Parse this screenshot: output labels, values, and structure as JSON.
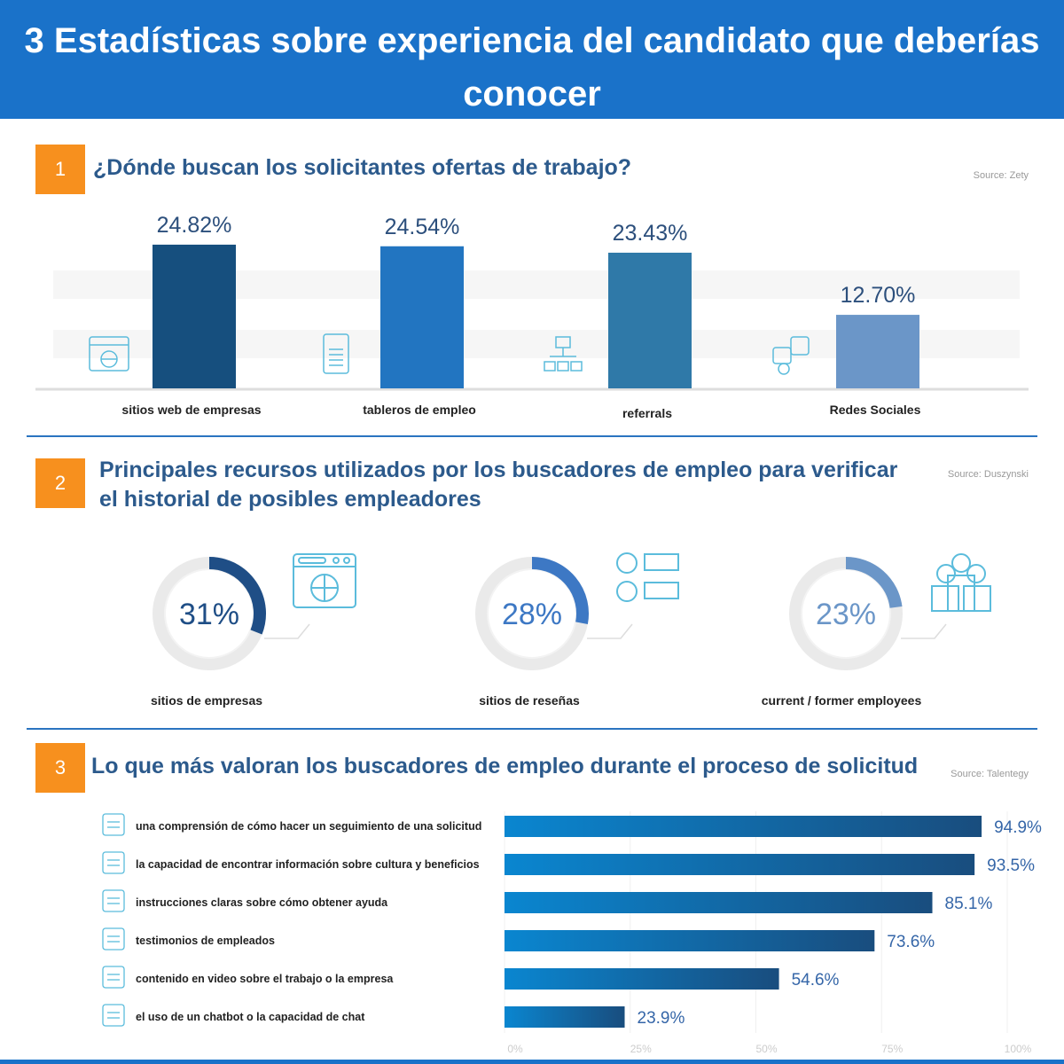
{
  "header": {
    "title": "3 Estadísticas sobre experiencia del candidato que deberías conocer"
  },
  "colors": {
    "header": "#1a72c9",
    "badge": "#f7901e",
    "title": "#2c5a8c",
    "icon": "#5bbcdc"
  },
  "sections": [
    {
      "number": "1",
      "title": "¿Dónde buscan los solicitantes ofertas de trabajo?",
      "source": "Source: Zety"
    },
    {
      "number": "2",
      "title": "Principales recursos utilizados por los buscadores de empleo para verificar el historial de posibles empleadores",
      "source": "Source: Duszynski"
    },
    {
      "number": "3",
      "title": "Lo que más valoran los buscadores de empleo durante el proceso de solicitud",
      "source": "Source: Talentegy"
    }
  ],
  "chart_data": [
    {
      "type": "bar",
      "categories": [
        "sitios web de empresas",
        "tableros de empleo",
        "referrals",
        "Redes Sociales"
      ],
      "values": [
        24.82,
        24.54,
        23.43,
        12.7
      ],
      "data_labels": [
        "24.82%",
        "24.54%",
        "23.43%",
        "12.70%"
      ],
      "colors": [
        "#164f7e",
        "#2275c1",
        "#2f79a8",
        "#6b96c8"
      ],
      "icons": [
        "globe-browser-icon",
        "jobs-board-icon",
        "org-chart-icon",
        "social-media-icon"
      ]
    },
    {
      "type": "pie",
      "subtype": "donut",
      "categories": [
        "sitios de empresas",
        "sitios de reseñas",
        "current / former employees"
      ],
      "values": [
        31,
        28,
        23
      ],
      "data_labels": [
        "31%",
        "28%",
        "23%"
      ],
      "colors": [
        "#1f4e86",
        "#3d78c4",
        "#6b96c8"
      ],
      "icons": [
        "globe-browser-icon",
        "checklist-icon",
        "employees-icon"
      ]
    },
    {
      "type": "bar",
      "orientation": "horizontal",
      "categories": [
        "una comprensión de cómo hacer un seguimiento de una solicitud",
        "la capacidad de encontrar información sobre cultura y beneficios",
        "instrucciones claras sobre cómo obtener ayuda",
        "testimonios de empleados",
        "contenido en video sobre el trabajo o la empresa",
        "el uso de un chatbot o la capacidad de chat"
      ],
      "values": [
        94.9,
        93.5,
        85.1,
        73.6,
        54.6,
        23.9
      ],
      "data_labels": [
        "94.9%",
        "93.5%",
        "85.1%",
        "73.6%",
        "54.6%",
        "23.9%"
      ],
      "xlim": [
        0,
        100
      ],
      "xticks": [
        "0%",
        "25%",
        "50%",
        "75%",
        "100%"
      ],
      "grid": true,
      "icons": [
        "workflow-icon",
        "culture-icon",
        "help-doc-icon",
        "testimonial-icon",
        "video-icon",
        "chatbot-icon"
      ]
    }
  ]
}
